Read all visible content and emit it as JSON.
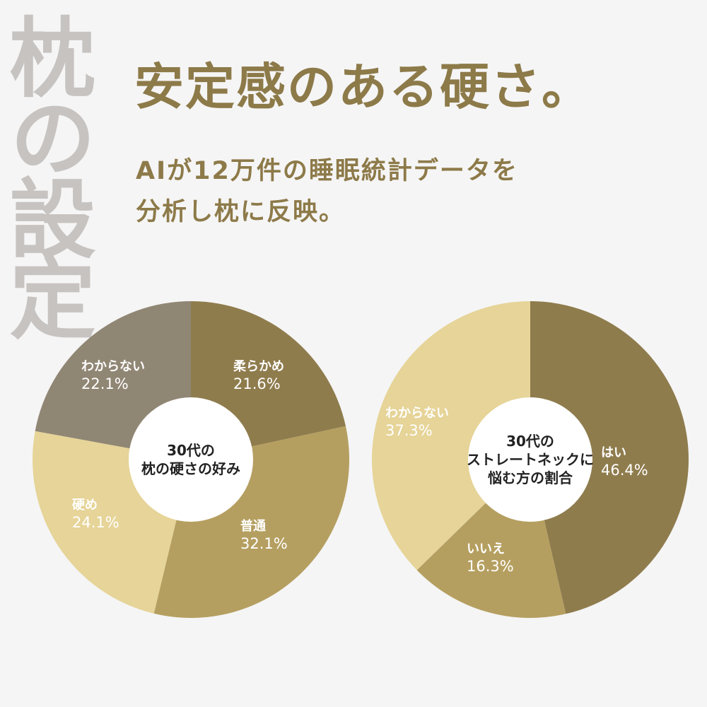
{
  "side_title": "枕の設定",
  "headline": "安定感のある硬さ。",
  "subcopy": {
    "line1": "AIが12万件の睡眠統計データを",
    "line2": "分析し枕に反映。"
  },
  "colors": {
    "accent": "#8d7a49",
    "side_title": "#c7c3c1",
    "slice_dark": "#8f7c4d",
    "slice_mid": "#b59f60",
    "slice_light": "#e6d498",
    "slice_gray": "#908674",
    "center": "#ffffff"
  },
  "chart_data": [
    {
      "type": "pie",
      "title": "30代の\n枕の硬さの好み",
      "categories": [
        "柔らかめ",
        "普通",
        "硬め",
        "わからない"
      ],
      "values": [
        21.6,
        32.1,
        24.1,
        22.1
      ],
      "value_labels": [
        "21.6%",
        "32.1%",
        "24.1%",
        "22.1%"
      ],
      "colors": [
        "#8f7c4d",
        "#b59f60",
        "#e6d498",
        "#908674"
      ]
    },
    {
      "type": "pie",
      "title": "30代の\nストレートネックに\n悩む方の割合",
      "categories": [
        "はい",
        "いいえ",
        "わからない"
      ],
      "values": [
        46.4,
        16.3,
        37.3
      ],
      "value_labels": [
        "46.4%",
        "16.3%",
        "37.3%"
      ],
      "colors": [
        "#8f7c4d",
        "#b59f60",
        "#e6d498"
      ]
    }
  ]
}
